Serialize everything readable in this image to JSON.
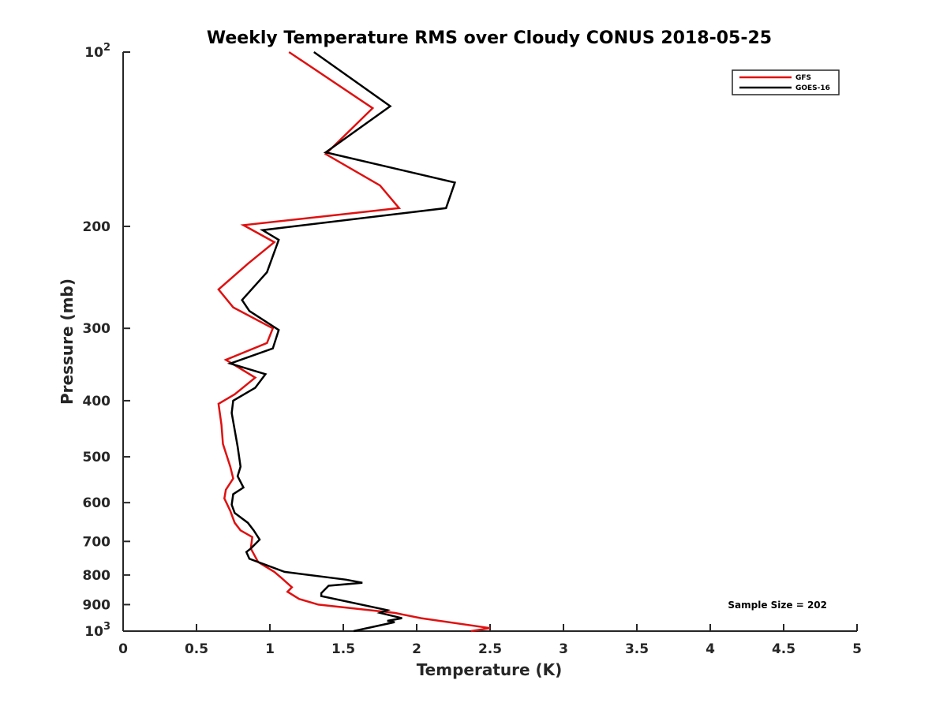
{
  "chart_data": {
    "type": "line",
    "title": "Weekly Temperature RMS over Cloudy CONUS 2018-05-25",
    "xlabel": "Temperature (K)",
    "ylabel": "Pressure (mb)",
    "xlim": [
      0,
      5
    ],
    "ylim": [
      100,
      1000
    ],
    "yscale": "log",
    "y_reversed": true,
    "x_ticks": [
      "0",
      "0.5",
      "1",
      "1.5",
      "2",
      "2.5",
      "3",
      "3.5",
      "4",
      "4.5",
      "5"
    ],
    "x_tick_values": [
      0,
      0.5,
      1,
      1.5,
      2,
      2.5,
      3,
      3.5,
      4,
      4.5,
      5
    ],
    "y_tick_values": [
      100,
      200,
      300,
      400,
      500,
      600,
      700,
      800,
      900,
      1000
    ],
    "y_ticks": [
      {
        "base": "10",
        "exp": "2"
      },
      {
        "base": "200",
        "exp": ""
      },
      {
        "base": "300",
        "exp": ""
      },
      {
        "base": "400",
        "exp": ""
      },
      {
        "base": "500",
        "exp": ""
      },
      {
        "base": "600",
        "exp": ""
      },
      {
        "base": "700",
        "exp": ""
      },
      {
        "base": "800",
        "exp": ""
      },
      {
        "base": "900",
        "exp": ""
      },
      {
        "base": "10",
        "exp": "3"
      }
    ],
    "legend_position": "top-right",
    "grid": false,
    "annotation": "Sample Size = 202",
    "series": [
      {
        "name": "GFS",
        "color": "#e01010",
        "points": [
          [
            1.13,
            100
          ],
          [
            1.7,
            125
          ],
          [
            1.38,
            150
          ],
          [
            1.75,
            170
          ],
          [
            1.88,
            186
          ],
          [
            0.82,
            199
          ],
          [
            1.03,
            213
          ],
          [
            0.85,
            232
          ],
          [
            0.65,
            257
          ],
          [
            0.75,
            276
          ],
          [
            1.02,
            300
          ],
          [
            0.98,
            318
          ],
          [
            0.7,
            340
          ],
          [
            0.9,
            365
          ],
          [
            0.76,
            390
          ],
          [
            0.65,
            405
          ],
          [
            0.67,
            440
          ],
          [
            0.68,
            475
          ],
          [
            0.73,
            520
          ],
          [
            0.75,
            545
          ],
          [
            0.7,
            570
          ],
          [
            0.69,
            590
          ],
          [
            0.73,
            620
          ],
          [
            0.76,
            650
          ],
          [
            0.8,
            670
          ],
          [
            0.88,
            688
          ],
          [
            0.87,
            720
          ],
          [
            0.92,
            760
          ],
          [
            1.03,
            790
          ],
          [
            1.08,
            810
          ],
          [
            1.15,
            840
          ],
          [
            1.12,
            855
          ],
          [
            1.2,
            880
          ],
          [
            1.33,
            900
          ],
          [
            1.85,
            930
          ],
          [
            2.03,
            950
          ],
          [
            2.5,
            988
          ],
          [
            2.37,
            1000
          ]
        ]
      },
      {
        "name": "GOES-16",
        "color": "#000000",
        "points": [
          [
            1.3,
            100
          ],
          [
            1.82,
            124
          ],
          [
            1.38,
            149
          ],
          [
            2.26,
            168
          ],
          [
            2.2,
            186
          ],
          [
            0.95,
            203
          ],
          [
            1.06,
            211
          ],
          [
            0.98,
            240
          ],
          [
            0.81,
            268
          ],
          [
            0.86,
            280
          ],
          [
            1.06,
            302
          ],
          [
            1.02,
            325
          ],
          [
            0.73,
            345
          ],
          [
            0.97,
            360
          ],
          [
            0.9,
            380
          ],
          [
            0.75,
            400
          ],
          [
            0.74,
            420
          ],
          [
            0.78,
            480
          ],
          [
            0.8,
            520
          ],
          [
            0.78,
            540
          ],
          [
            0.82,
            565
          ],
          [
            0.75,
            580
          ],
          [
            0.74,
            605
          ],
          [
            0.76,
            625
          ],
          [
            0.85,
            650
          ],
          [
            0.89,
            670
          ],
          [
            0.93,
            695
          ],
          [
            0.87,
            720
          ],
          [
            0.84,
            730
          ],
          [
            0.86,
            750
          ],
          [
            1.1,
            790
          ],
          [
            1.52,
            815
          ],
          [
            1.63,
            825
          ],
          [
            1.4,
            835
          ],
          [
            1.35,
            860
          ],
          [
            1.35,
            870
          ],
          [
            1.8,
            920
          ],
          [
            1.75,
            930
          ],
          [
            1.9,
            950
          ],
          [
            1.8,
            960
          ],
          [
            1.85,
            965
          ],
          [
            1.57,
            1000
          ]
        ]
      }
    ]
  }
}
